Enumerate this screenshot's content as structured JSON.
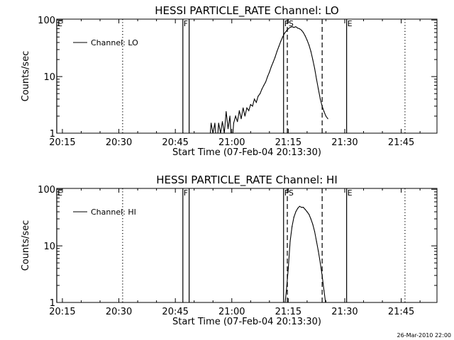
{
  "footer_stamp": "26-Mar-2010 22:00",
  "chart_data": [
    {
      "type": "line",
      "title": "HESSI PARTICLE_RATE Channel: LO",
      "xlabel": "Start Time (07-Feb-04 20:13:30)",
      "ylabel": "Counts/sec",
      "xlim": [
        "20:13:30",
        "21:54:30"
      ],
      "ylim": [
        1,
        100
      ],
      "yscale": "log",
      "x_ticks": [
        "20:15",
        "20:30",
        "20:45",
        "21:00",
        "21:15",
        "21:30",
        "21:45"
      ],
      "y_ticks": [
        "1",
        "10",
        "100"
      ],
      "legend": {
        "entries": [
          "Channel: LO"
        ],
        "placement": "top-left"
      },
      "markers": [
        {
          "label": "E",
          "time": "20:13:30",
          "style": "solid"
        },
        {
          "label": "",
          "time": "20:31",
          "style": "dotted"
        },
        {
          "label": "F",
          "time": "20:47",
          "style": "solid"
        },
        {
          "label": "",
          "time": "20:48:40",
          "style": "solid"
        },
        {
          "label": "FS",
          "time": "21:13:45",
          "style": "solid"
        },
        {
          "label": "",
          "time": "21:14:45",
          "style": "dashed"
        },
        {
          "label": "",
          "time": "21:24",
          "style": "dashed"
        },
        {
          "label": "E",
          "time": "21:30:30",
          "style": "solid"
        },
        {
          "label": "",
          "time": "21:46",
          "style": "dotted"
        }
      ],
      "series": [
        {
          "name": "Channel: LO",
          "x": [
            "20:54",
            "20:54:30",
            "20:55",
            "20:55:30",
            "20:56",
            "20:56:30",
            "20:57",
            "20:57:30",
            "20:58",
            "20:58:30",
            "20:59",
            "20:59:30",
            "21:00",
            "21:00:30",
            "21:01",
            "21:01:30",
            "21:02",
            "21:02:30",
            "21:03",
            "21:03:30",
            "21:04",
            "21:04:30",
            "21:05",
            "21:05:30",
            "21:06",
            "21:06:30",
            "21:07",
            "21:07:30",
            "21:08",
            "21:08:30",
            "21:09",
            "21:09:30",
            "21:10",
            "21:10:30",
            "21:11",
            "21:11:30",
            "21:12",
            "21:12:30",
            "21:13",
            "21:13:30",
            "21:14",
            "21:14:30",
            "21:15",
            "21:15:30",
            "21:16",
            "21:16:30",
            "21:17",
            "21:17:30",
            "21:18",
            "21:18:30",
            "21:19",
            "21:19:30",
            "21:20",
            "21:20:30",
            "21:21",
            "21:21:30",
            "21:22",
            "21:22:30",
            "21:23",
            "21:23:30",
            "21:24",
            "21:24:30",
            "21:25",
            "21:25:30"
          ],
          "y": [
            0.5,
            1.5,
            1.0,
            1.5,
            0.5,
            1.5,
            1.0,
            1.6,
            1.0,
            2.4,
            1.2,
            2.0,
            0.5,
            1.5,
            2.0,
            1.6,
            2.5,
            1.8,
            2.8,
            2.0,
            2.8,
            2.5,
            3.2,
            3.0,
            4.0,
            3.5,
            4.5,
            5.0,
            6.0,
            7.0,
            8.0,
            10.0,
            12.0,
            15.0,
            18.0,
            22.0,
            28.0,
            34.0,
            42.0,
            50.0,
            58.0,
            64.0,
            70.0,
            74.0,
            76.0,
            74.0,
            76.0,
            72.0,
            70.0,
            66.0,
            60.0,
            52.0,
            44.0,
            36.0,
            28.0,
            20.0,
            14.0,
            9.0,
            6.0,
            4.0,
            3.0,
            2.4,
            2.0,
            1.8
          ]
        }
      ]
    },
    {
      "type": "line",
      "title": "HESSI PARTICLE_RATE Channel: HI",
      "xlabel": "Start Time (07-Feb-04 20:13:30)",
      "ylabel": "Counts/sec",
      "xlim": [
        "20:13:30",
        "21:54:30"
      ],
      "ylim": [
        1,
        100
      ],
      "yscale": "log",
      "x_ticks": [
        "20:15",
        "20:30",
        "20:45",
        "21:00",
        "21:15",
        "21:30",
        "21:45"
      ],
      "y_ticks": [
        "1",
        "10",
        "100"
      ],
      "legend": {
        "entries": [
          "Channel: HI"
        ],
        "placement": "top-left"
      },
      "markers": [
        {
          "label": "E",
          "time": "20:13:30",
          "style": "solid"
        },
        {
          "label": "",
          "time": "20:31",
          "style": "dotted"
        },
        {
          "label": "F",
          "time": "20:47",
          "style": "solid"
        },
        {
          "label": "",
          "time": "20:48:40",
          "style": "solid"
        },
        {
          "label": "FS",
          "time": "21:13:45",
          "style": "solid"
        },
        {
          "label": "",
          "time": "21:14:45",
          "style": "dashed"
        },
        {
          "label": "",
          "time": "21:24",
          "style": "dashed"
        },
        {
          "label": "E",
          "time": "21:30:30",
          "style": "solid"
        },
        {
          "label": "",
          "time": "21:46",
          "style": "dotted"
        }
      ],
      "series": [
        {
          "name": "Channel: HI",
          "x": [
            "21:14",
            "21:14:30",
            "21:15",
            "21:15:30",
            "21:16",
            "21:16:30",
            "21:17",
            "21:17:30",
            "21:18",
            "21:18:30",
            "21:19",
            "21:19:30",
            "21:20",
            "21:20:30",
            "21:21",
            "21:21:30",
            "21:22",
            "21:22:30",
            "21:23",
            "21:23:30",
            "21:24",
            "21:24:30",
            "21:25"
          ],
          "y": [
            0.8,
            1.6,
            4.0,
            12.0,
            22.0,
            32.0,
            40.0,
            46.0,
            50.0,
            48.0,
            48.0,
            44.0,
            40.0,
            36.0,
            30.0,
            24.0,
            18.0,
            12.0,
            8.0,
            5.0,
            3.0,
            1.6,
            0.9
          ]
        }
      ]
    }
  ]
}
